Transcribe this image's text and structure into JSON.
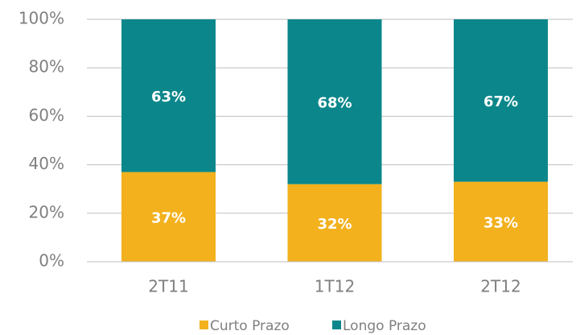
{
  "chart_data": {
    "type": "stacked_bar",
    "categories": [
      "2T11",
      "1T12",
      "2T12"
    ],
    "series": [
      {
        "name": "Curto Prazo",
        "color": "#f2b11d",
        "values": [
          37,
          32,
          33
        ],
        "value_labels": [
          "37%",
          "32%",
          "33%"
        ]
      },
      {
        "name": "Longo Prazo",
        "color": "#0b878b",
        "values": [
          63,
          68,
          67
        ],
        "value_labels": [
          "63%",
          "68%",
          "67%"
        ]
      }
    ],
    "ylim": [
      0,
      100
    ],
    "yticks": [
      {
        "value": 0,
        "label": "0%"
      },
      {
        "value": 20,
        "label": "20%"
      },
      {
        "value": 40,
        "label": "40%"
      },
      {
        "value": 60,
        "label": "60%"
      },
      {
        "value": 80,
        "label": "80%"
      },
      {
        "value": 100,
        "label": "100%"
      }
    ],
    "grid": true,
    "legend": "bottom"
  }
}
